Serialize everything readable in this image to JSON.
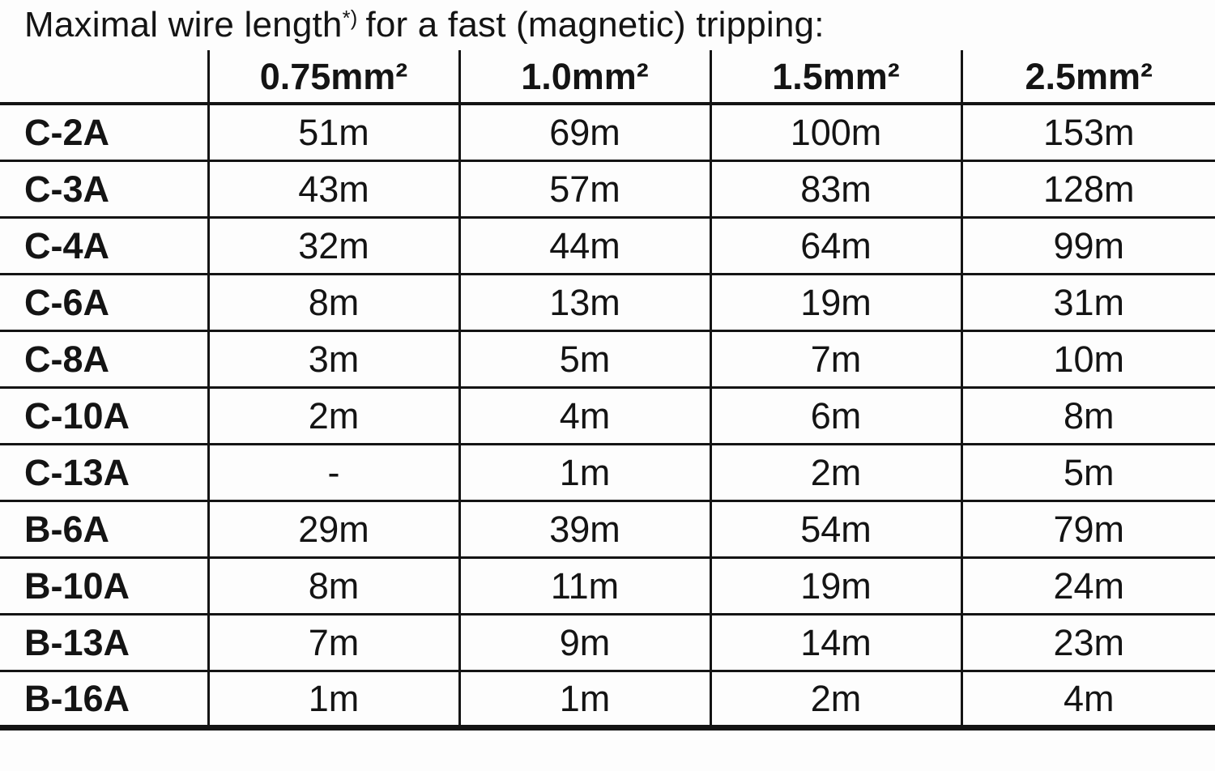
{
  "page": {
    "title": {
      "text": "Maximal wire length",
      "superscript": "*)",
      "rest": "for a fast (magnetic) tripping:"
    }
  },
  "table": {
    "corner_label": "",
    "columns": [
      "0.75mm²",
      "1.0mm²",
      "1.5mm²",
      "2.5mm²"
    ],
    "rows": [
      {
        "label": "C-2A",
        "values": [
          "51m",
          "69m",
          "100m",
          "153m"
        ]
      },
      {
        "label": "C-3A",
        "values": [
          "43m",
          "57m",
          "83m",
          "128m"
        ]
      },
      {
        "label": "C-4A",
        "values": [
          "32m",
          "44m",
          "64m",
          "99m"
        ]
      },
      {
        "label": "C-6A",
        "values": [
          "8m",
          "13m",
          "19m",
          "31m"
        ]
      },
      {
        "label": "C-8A",
        "values": [
          "3m",
          "5m",
          "7m",
          "10m"
        ]
      },
      {
        "label": "C-10A",
        "values": [
          "2m",
          "4m",
          "6m",
          "8m"
        ]
      },
      {
        "label": "C-13A",
        "values": [
          "-",
          "1m",
          "2m",
          "5m"
        ]
      },
      {
        "label": "B-6A",
        "values": [
          "29m",
          "39m",
          "54m",
          "79m"
        ]
      },
      {
        "label": "B-10A",
        "values": [
          "8m",
          "11m",
          "19m",
          "24m"
        ]
      },
      {
        "label": "B-13A",
        "values": [
          "7m",
          "9m",
          "14m",
          "23m"
        ]
      },
      {
        "label": "B-16A",
        "values": [
          "1m",
          "1m",
          "2m",
          "4m"
        ]
      }
    ]
  },
  "colors": {
    "text": "#141414",
    "line": "#141414",
    "background": "#fdfdfd"
  }
}
